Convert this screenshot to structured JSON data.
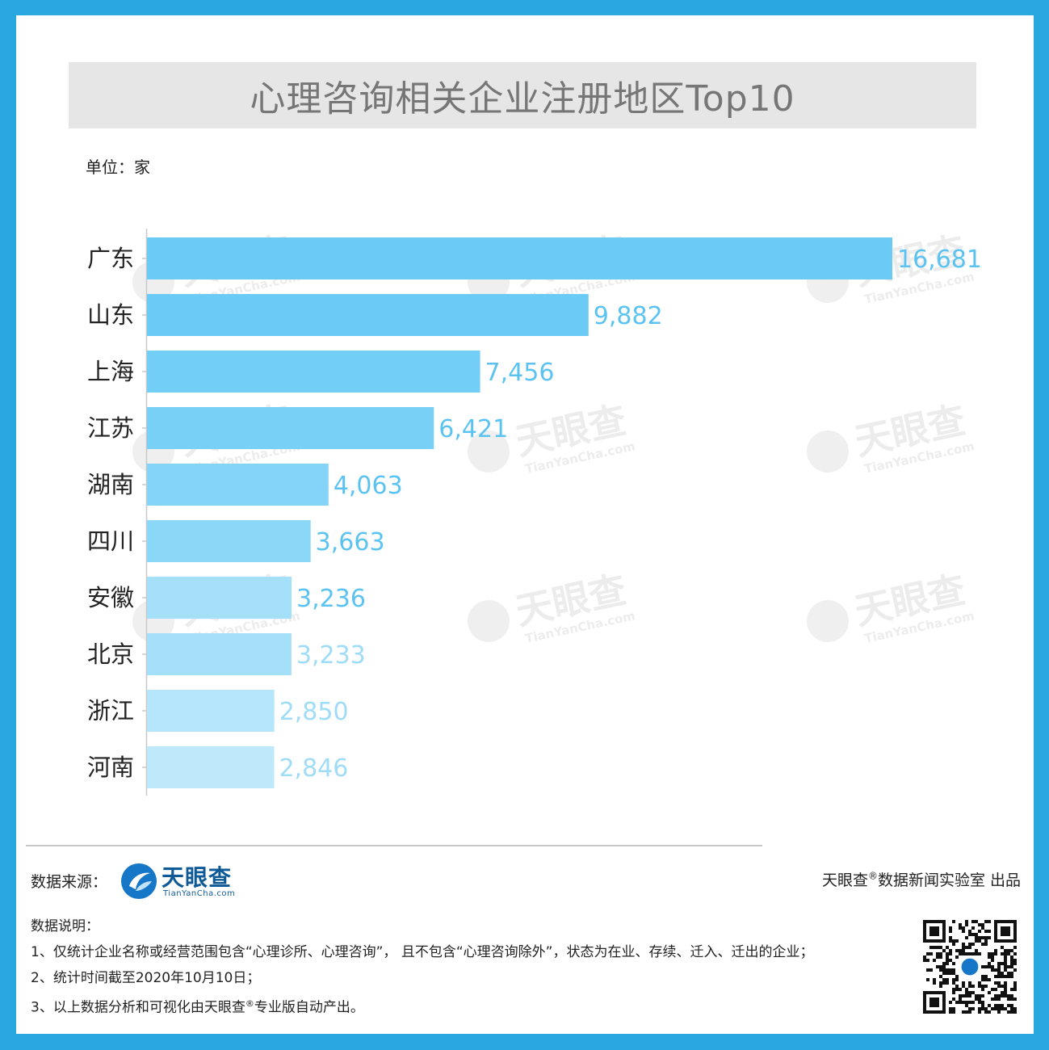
{
  "title": "心理咨询相关企业注册地区Top10",
  "unit": "单位：家",
  "chart_data": {
    "type": "bar",
    "orientation": "horizontal",
    "categories": [
      "广东",
      "山东",
      "上海",
      "江苏",
      "湖南",
      "四川",
      "安徽",
      "北京",
      "浙江",
      "河南"
    ],
    "values": [
      16681,
      9882,
      7456,
      6421,
      4063,
      3663,
      3236,
      3233,
      2850,
      2846
    ],
    "value_labels": [
      "16,681",
      "9,882",
      "7,456",
      "6,421",
      "4,063",
      "3,663",
      "3,236",
      "3,233",
      "2,850",
      "2,846"
    ],
    "colors": [
      "#6bcbf6",
      "#6bcbf6",
      "#73cef7",
      "#78d0f7",
      "#83d4f8",
      "#8ad7f8",
      "#a4e0fa",
      "#a4e0fa",
      "#b5e6fb",
      "#bee9fb"
    ],
    "xlim": [
      0,
      16681
    ],
    "grid": false,
    "legend": "none"
  },
  "watermark": {
    "name": "天眼查",
    "url": "TianYanCha.com"
  },
  "footer": {
    "source_label": "数据来源：",
    "brand_name": "天眼查",
    "brand_url": "TianYanCha.com",
    "producer_prefix": "天眼查",
    "producer_reg": "®",
    "producer_suffix": "数据新闻实验室 出品",
    "notes_title": "数据说明：",
    "note1": "1、仅统计企业名称或经营范围包含“心理诊所、心理咨询”，  且不包含“心理咨询除外”，状态为在业、存续、迁入、迁出的企业；",
    "note2": "2、统计时间截至2020年10月10日；",
    "note3_prefix": "3、以上数据分析和可视化由天眼查",
    "note3_reg": "®",
    "note3_suffix": "专业版自动产出。"
  },
  "colors": {
    "frame": "#29a8e0",
    "brand": "#0e5a96",
    "value_label": "#5bc3f2"
  }
}
